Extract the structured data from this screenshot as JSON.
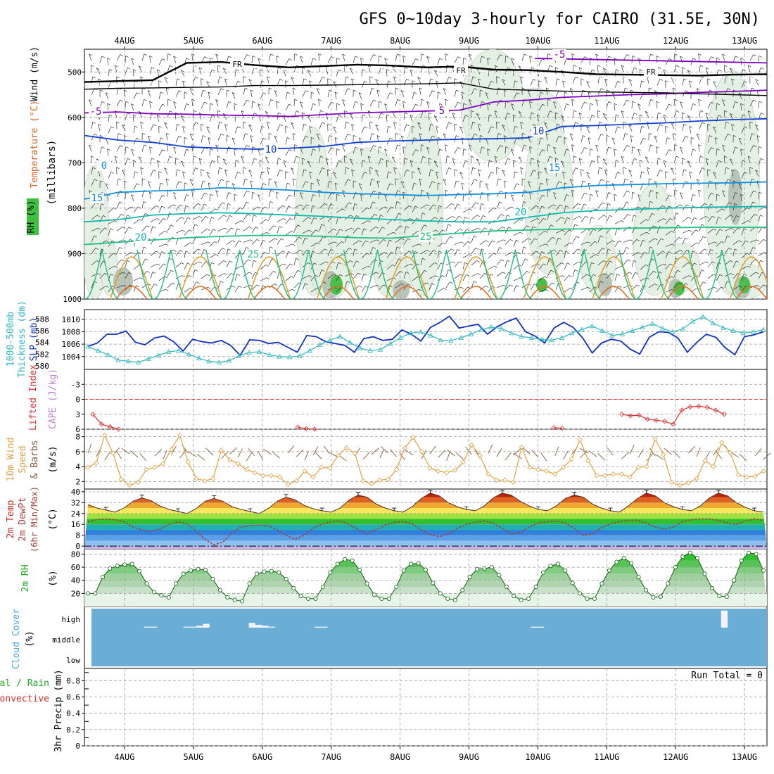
{
  "title": "GFS 0~10day 3-hourly for CAIRO (31.5E, 30N)",
  "days": [
    "4AUG",
    "5AUG",
    "6AUG",
    "7AUG",
    "8AUG",
    "9AUG",
    "10AUG",
    "11AUG",
    "12AUG",
    "13AUG"
  ],
  "run_total": "Run Total = 0",
  "colors": {
    "freezing": "#000000",
    "iso_m5": "#8000c0",
    "iso_10": "#1040d0",
    "iso_15": "#1090e0",
    "iso_20": "#10b8b0",
    "iso_25": "#20c080",
    "iso_30": "#e0a030",
    "slp": "#1030c0",
    "thickness": "#30b8c0",
    "lifted": "#e03030",
    "wind": "#e0a040",
    "barb": "#806040",
    "dewpt": "#a04040",
    "rh": "#20b020",
    "cloud_bg": "#6aaed6",
    "cloud_fg": "#f4f4f8"
  },
  "chart_data": [
    {
      "type": "contour",
      "panel": "upper-air",
      "ylabel_parts": [
        "Wind (m/s)",
        "Temperature (°C)",
        "RH (%)"
      ],
      "ylabel2": "(millibars)",
      "yticks": [
        "500",
        "600",
        "700",
        "800",
        "900",
        "1000"
      ],
      "ylim": [
        450,
        1000
      ],
      "isotherm_labels": [
        "FR",
        "FR",
        "FR",
        "-5",
        "-5",
        "5",
        "10",
        "10",
        "15",
        "15",
        "0",
        "20",
        "20",
        "25",
        "25"
      ],
      "isotherms": [
        {
          "label": "FR",
          "level": [
            522,
            520,
            518,
            480,
            478,
            485,
            490,
            487,
            484,
            486,
            490,
            488,
            495,
            496,
            500,
            505,
            506,
            507,
            508,
            506,
            505
          ]
        },
        {
          "label": "-5",
          "level": [
            590,
            588,
            592,
            593,
            595,
            596,
            598,
            594,
            590,
            588,
            586,
            584,
            566,
            562,
            556,
            553,
            550,
            548,
            545,
            543,
            540
          ]
        },
        {
          "label": "10",
          "level": [
            640,
            650,
            655,
            665,
            668,
            670,
            668,
            664,
            655,
            652,
            650,
            648,
            647,
            645,
            620,
            618,
            615,
            612,
            608,
            605,
            603
          ]
        },
        {
          "label": "15",
          "level": [
            780,
            765,
            762,
            760,
            755,
            757,
            760,
            765,
            768,
            770,
            772,
            770,
            768,
            765,
            755,
            750,
            748,
            746,
            745,
            744,
            742
          ]
        },
        {
          "label": "20",
          "level": [
            830,
            825,
            815,
            812,
            810,
            812,
            815,
            818,
            822,
            825,
            828,
            830,
            830,
            820,
            810,
            805,
            803,
            800,
            798,
            797,
            796
          ]
        },
        {
          "label": "25",
          "level": [
            880,
            875,
            870,
            865,
            862,
            860,
            860,
            862,
            865,
            866,
            860,
            855,
            850,
            848,
            846,
            845,
            844,
            843,
            842,
            842,
            842
          ]
        }
      ]
    },
    {
      "type": "line",
      "panel": "slp-thickness",
      "ylabel": [
        "1000-500mb",
        "Thickness (dm)",
        "SLP (mb)"
      ],
      "yticks_left": [
        "580",
        "582",
        "584",
        "586",
        "588"
      ],
      "yticks_right": [
        "1004",
        "1006",
        "1008",
        "1010"
      ],
      "ylim_left": [
        580,
        589
      ],
      "ylim_right": [
        1002.5,
        1011
      ],
      "series": [
        {
          "axis": "right",
          "values": [
            1005.6,
            1006.2,
            1007.6,
            1007.6,
            1008.1,
            1006.3,
            1005.9,
            1007.0,
            1007.3,
            1006.4,
            1004.9,
            1006.8,
            1006.4,
            1006.2,
            1006.6,
            1005.8,
            1004.2,
            1006.7,
            1006.6,
            1006.1,
            1006.3,
            1005.5,
            1004.7,
            1007.4,
            1007.2,
            1006.4,
            1006.1,
            1005.8,
            1004.7,
            1006.9,
            1007.2,
            1006.6,
            1006.8,
            1008.3,
            1007.6,
            1006.5,
            1008.7,
            1009.5,
            1010.5,
            1008.6,
            1008.9,
            1009.2,
            1007.6,
            1008.8,
            1009.6,
            1010.2,
            1008.0,
            1007.3,
            1006.2,
            1008.6,
            1009.5,
            1008.7,
            1007.0,
            1004.6,
            1006.2,
            1006.8,
            1006.5,
            1005.2,
            1004.4,
            1007.1,
            1008.0,
            1007.9,
            1007.0,
            1004.7,
            1006.3,
            1007.6,
            1007.1,
            1005.4,
            1004.3,
            1007.2,
            1007.5,
            1008.0
          ]
        },
        {
          "axis": "left",
          "values": [
            583.3,
            582.6,
            581.9,
            581.0,
            580.8,
            580.6,
            581.2,
            581.8,
            582.4,
            582.6,
            582.0,
            581.3,
            580.8,
            580.6,
            580.9,
            581.7,
            582.3,
            582.4,
            581.9,
            581.6,
            581.5,
            581.7,
            582.6,
            583.6,
            584.4,
            585.0,
            584.0,
            583.0,
            582.6,
            582.8,
            583.8,
            584.8,
            585.6,
            585.8,
            585.2,
            584.4,
            584.3,
            584.8,
            585.4,
            586.2,
            586.6,
            586.4,
            585.6,
            585.0,
            584.8,
            584.5,
            584.4,
            584.8,
            585.6,
            586.2,
            586.8,
            586.0,
            585.2,
            585.4,
            586.0,
            586.6,
            587.2,
            586.4,
            585.8,
            586.3,
            587.6,
            588.4,
            587.3,
            586.5,
            586.0,
            585.6,
            585.8,
            586.2
          ]
        }
      ]
    },
    {
      "type": "line",
      "panel": "lifted-cape",
      "ylabel": [
        "Lifted Index",
        "CAPE (J/kg)"
      ],
      "yticks": [
        "-3",
        "0",
        "3",
        "6"
      ],
      "ylim": [
        -6,
        6
      ],
      "reference_line": 0,
      "segments": [
        {
          "x_start": 1,
          "values": [
            3.0,
            5.0,
            5.5,
            6.0
          ]
        },
        {
          "x_start": 25,
          "values": [
            5.6,
            5.9,
            6.0
          ]
        },
        {
          "x_start": 55,
          "values": [
            5.7,
            5.8
          ]
        },
        {
          "x_start": 63,
          "values": [
            3.0,
            3.3,
            3.2,
            4.0,
            4.2,
            4.4,
            5.0,
            2.2,
            1.5,
            1.4,
            1.6,
            2.2,
            3.0
          ]
        }
      ]
    },
    {
      "type": "line",
      "panel": "wind-10m",
      "ylabel": [
        "10m Wind",
        "Speed",
        "& Barbs",
        "(m/s)"
      ],
      "yticks": [
        "2",
        "4",
        "6",
        "8"
      ],
      "ylim": [
        1,
        9
      ],
      "values": [
        3.9,
        4.5,
        8.2,
        5.8,
        2.3,
        1.5,
        1.9,
        3.6,
        3.9,
        4.4,
        6.3,
        8.2,
        4.6,
        2.4,
        2.1,
        2.4,
        6.2,
        4.9,
        4.4,
        3.6,
        3.2,
        2.8,
        2.8,
        2.6,
        1.6,
        2.1,
        3.4,
        2.6,
        3.9,
        3.8,
        5.5,
        6.5,
        5.8,
        2.1,
        1.7,
        2.2,
        2.3,
        3.6,
        6.5,
        7.9,
        6.0,
        3.8,
        3.4,
        3.2,
        3.5,
        4.6,
        6.9,
        5.5,
        3.0,
        2.2,
        2.2,
        1.9,
        6.6,
        3.9,
        3.6,
        3.4,
        3.0,
        3.9,
        5.0,
        7.6,
        4.8,
        2.8,
        2.8,
        3.0,
        3.0,
        2.6,
        3.9,
        4.0,
        7.7,
        5.6,
        1.9,
        1.5,
        1.8,
        2.4,
        4.8,
        4.0,
        7.2,
        5.9,
        2.9,
        2.6,
        2.7,
        3.4
      ]
    },
    {
      "type": "area",
      "panel": "temperature",
      "ylabel": [
        "2m Temp",
        "2m DewPt",
        "(6hr Min/Max)",
        "(°C)"
      ],
      "yticks": [
        "0",
        "8",
        "16",
        "24",
        "32",
        "40"
      ],
      "ylim": [
        -2,
        42
      ],
      "temp": [
        30.5,
        28.0,
        26.5,
        25.0,
        28.0,
        33.0,
        35.5,
        33.5,
        29.5,
        27.0,
        25.5,
        24.0,
        27.5,
        33.0,
        35.0,
        33.0,
        29.0,
        27.0,
        25.5,
        24.0,
        27.5,
        33.0,
        36.0,
        34.0,
        30.0,
        27.5,
        26.0,
        25.0,
        28.0,
        34.0,
        37.5,
        36.0,
        31.0,
        28.0,
        26.0,
        25.0,
        29.0,
        35.0,
        39.0,
        37.0,
        32.0,
        29.0,
        27.0,
        26.0,
        29.5,
        35.5,
        39.0,
        37.5,
        33.0,
        29.5,
        27.0,
        26.0,
        29.5,
        35.0,
        37.5,
        36.0,
        31.0,
        28.0,
        26.0,
        25.0,
        29.5,
        35.0,
        39.0,
        37.0,
        32.0,
        29.0,
        27.0,
        26.0,
        29.5,
        35.5,
        39.0,
        37.0,
        32.0,
        28.5,
        26.0,
        25.0
      ],
      "dewpt": [
        18.0,
        19.5,
        20.0,
        19.5,
        18.0,
        14.0,
        12.0,
        11.0,
        12.5,
        16.0,
        18.0,
        16.5,
        11.0,
        5.0,
        1.0,
        3.0,
        10.0,
        14.0,
        15.0,
        15.5,
        15.0,
        12.0,
        8.0,
        5.0,
        8.0,
        13.0,
        16.5,
        18.0,
        18.5,
        16.0,
        12.0,
        9.0,
        12.0,
        15.5,
        17.5,
        18.0,
        16.5,
        12.0,
        8.5,
        7.0,
        9.0,
        13.0,
        16.0,
        17.5,
        18.5,
        17.0,
        13.0,
        9.0,
        10.0,
        14.0,
        17.0,
        18.0,
        18.5,
        17.0,
        13.0,
        8.0,
        9.0,
        13.5,
        16.5,
        18.0,
        19.0,
        19.0,
        17.0,
        14.0,
        12.5,
        14.0,
        18.0,
        19.5,
        20.0,
        20.0,
        19.0,
        17.0,
        16.0,
        18.5,
        20.0,
        19.0
      ]
    },
    {
      "type": "area",
      "panel": "rh-2m",
      "ylabel": [
        "2m RH",
        "(%)"
      ],
      "yticks": [
        "20",
        "40",
        "60",
        "80"
      ],
      "ylim": [
        0,
        88
      ],
      "values": [
        20,
        20,
        45,
        58,
        62,
        64,
        65,
        54,
        35,
        22,
        17,
        14,
        35,
        50,
        55,
        57,
        56,
        42,
        25,
        14,
        10,
        8,
        35,
        50,
        53,
        54,
        52,
        42,
        28,
        16,
        12,
        12,
        30,
        52,
        65,
        72,
        70,
        56,
        35,
        18,
        12,
        12,
        30,
        55,
        65,
        66,
        56,
        36,
        20,
        12,
        10,
        25,
        45,
        57,
        58,
        60,
        48,
        30,
        16,
        10,
        12,
        30,
        52,
        62,
        65,
        55,
        36,
        20,
        12,
        12,
        35,
        55,
        68,
        74,
        66,
        45,
        25,
        14,
        15,
        35,
        60,
        76,
        82,
        74,
        50,
        28,
        16,
        15,
        40,
        70,
        82,
        80,
        55
      ]
    },
    {
      "type": "bar",
      "panel": "cloud-cover",
      "ylabel": [
        "Cloud Cover",
        "(%)"
      ],
      "ylevels": [
        "high",
        "middle",
        "low"
      ],
      "high_cloud": [
        0,
        0,
        0,
        0,
        0,
        0,
        0,
        0,
        5,
        5,
        0,
        0,
        0,
        0,
        5,
        5,
        10,
        20,
        0,
        0,
        0,
        0,
        0,
        0,
        25,
        15,
        10,
        5,
        0,
        0,
        0,
        0,
        0,
        0,
        5,
        5,
        0,
        0,
        0,
        0,
        0,
        0,
        0,
        0,
        0,
        0,
        0,
        0,
        0,
        0,
        0,
        0,
        0,
        0,
        0,
        0,
        0,
        0,
        0,
        0,
        0,
        0,
        0,
        0,
        0,
        0,
        0,
        5,
        5,
        0,
        0,
        0,
        0,
        0,
        0,
        0,
        0,
        0,
        0,
        0,
        0,
        0,
        0,
        0,
        0,
        0,
        0,
        0,
        0,
        0,
        0,
        0,
        0,
        0,
        0,
        0,
        90,
        0,
        0,
        0,
        0,
        0,
        0
      ]
    },
    {
      "type": "bar",
      "panel": "precip",
      "ylabel": [
        "3hr Precip (mm)",
        "Total / Rain",
        "Convective"
      ],
      "yticks": [
        "0",
        "0.2",
        "0.4",
        "0.6",
        "0.8"
      ],
      "ylim": [
        0,
        0.95
      ],
      "values": []
    }
  ]
}
